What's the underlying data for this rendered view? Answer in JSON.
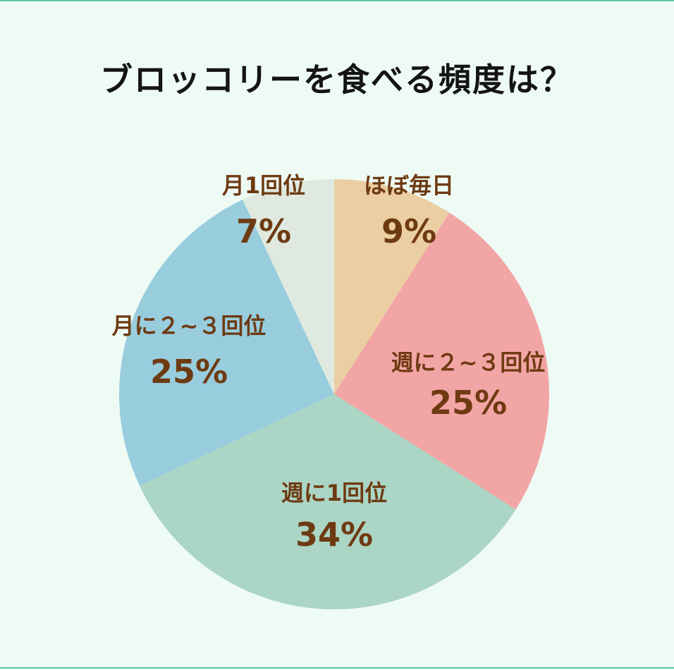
{
  "chart_data": {
    "type": "pie",
    "title": "ブロッコリーを食べる頻度は？",
    "start": "top",
    "direction": "clockwise",
    "slices": [
      {
        "label": "ほぼ毎日",
        "value": 9,
        "value_label": "9%",
        "color": "#ecceA3"
      },
      {
        "label": "週に２~３回位",
        "value": 25,
        "value_label": "25%",
        "color": "#f2a5a5"
      },
      {
        "label": "週に1回位",
        "value": 34,
        "value_label": "34%",
        "color": "#abd5c4"
      },
      {
        "label": "月に２~３回位",
        "value": 25,
        "value_label": "25%",
        "color": "#98cddd"
      },
      {
        "label": "月1回位",
        "value": 7,
        "value_label": "7%",
        "color": "#e0e9df"
      }
    ]
  }
}
